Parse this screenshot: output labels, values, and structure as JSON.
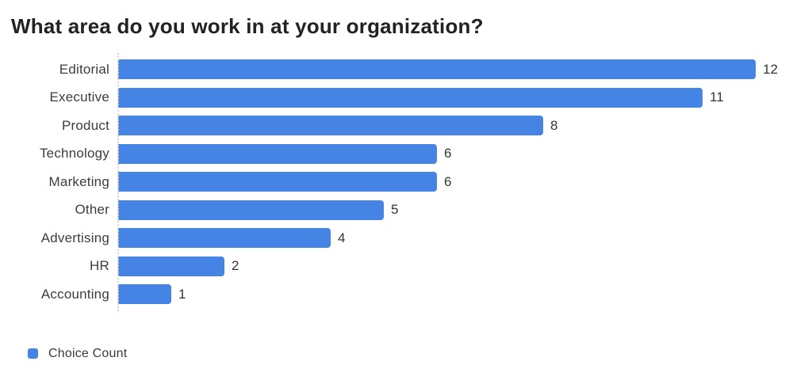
{
  "page": {
    "background": "#ffffff"
  },
  "chart_data": {
    "type": "bar",
    "orientation": "horizontal",
    "title": "What area do you work in at your organization?",
    "categories": [
      "Editorial",
      "Executive",
      "Product",
      "Technology",
      "Marketing",
      "Other",
      "Advertising",
      "HR",
      "Accounting"
    ],
    "values": [
      12,
      11,
      8,
      6,
      6,
      5,
      4,
      2,
      1
    ],
    "series_name": "Choice Count",
    "xlim": [
      0,
      12
    ],
    "grid": false,
    "value_labels": true,
    "legend_position": "bottom-left",
    "bar_color": "#4584e4",
    "axis_line_color": "#d4d4d4",
    "title_color": "#222226",
    "label_color": "#3d3d3d"
  }
}
